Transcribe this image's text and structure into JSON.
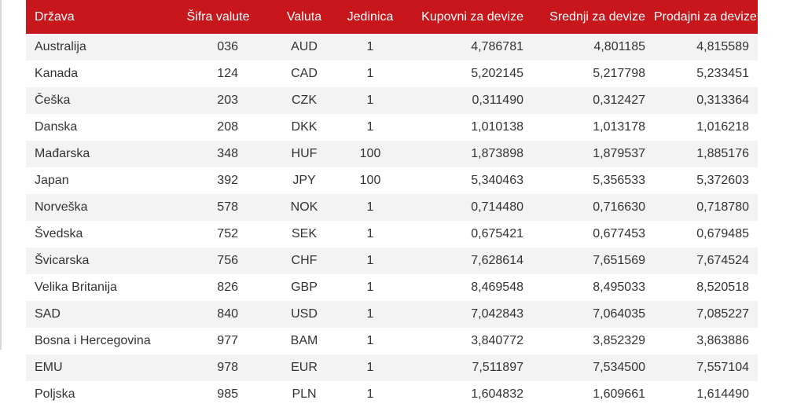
{
  "table": {
    "headers": {
      "country": "Država",
      "code": "Šifra valute",
      "currency": "Valuta",
      "unit": "Jedinica",
      "buy": "Kupovni za devize",
      "mid": "Srednji za devize",
      "sell": "Prodajni za devize"
    },
    "rows": [
      {
        "country": "Australija",
        "code": "036",
        "currency": "AUD",
        "unit": "1",
        "buy": "4,786781",
        "mid": "4,801185",
        "sell": "4,815589"
      },
      {
        "country": "Kanada",
        "code": "124",
        "currency": "CAD",
        "unit": "1",
        "buy": "5,202145",
        "mid": "5,217798",
        "sell": "5,233451"
      },
      {
        "country": "Češka",
        "code": "203",
        "currency": "CZK",
        "unit": "1",
        "buy": "0,311490",
        "mid": "0,312427",
        "sell": "0,313364"
      },
      {
        "country": "Danska",
        "code": "208",
        "currency": "DKK",
        "unit": "1",
        "buy": "1,010138",
        "mid": "1,013178",
        "sell": "1,016218"
      },
      {
        "country": "Mađarska",
        "code": "348",
        "currency": "HUF",
        "unit": "100",
        "buy": "1,873898",
        "mid": "1,879537",
        "sell": "1,885176"
      },
      {
        "country": "Japan",
        "code": "392",
        "currency": "JPY",
        "unit": "100",
        "buy": "5,340463",
        "mid": "5,356533",
        "sell": "5,372603"
      },
      {
        "country": "Norveška",
        "code": "578",
        "currency": "NOK",
        "unit": "1",
        "buy": "0,714480",
        "mid": "0,716630",
        "sell": "0,718780"
      },
      {
        "country": "Švedska",
        "code": "752",
        "currency": "SEK",
        "unit": "1",
        "buy": "0,675421",
        "mid": "0,677453",
        "sell": "0,679485"
      },
      {
        "country": "Švicarska",
        "code": "756",
        "currency": "CHF",
        "unit": "1",
        "buy": "7,628614",
        "mid": "7,651569",
        "sell": "7,674524"
      },
      {
        "country": "Velika Britanija",
        "code": "826",
        "currency": "GBP",
        "unit": "1",
        "buy": "8,469548",
        "mid": "8,495033",
        "sell": "8,520518"
      },
      {
        "country": "SAD",
        "code": "840",
        "currency": "USD",
        "unit": "1",
        "buy": "7,042843",
        "mid": "7,064035",
        "sell": "7,085227"
      },
      {
        "country": "Bosna i Hercegovina",
        "code": "977",
        "currency": "BAM",
        "unit": "1",
        "buy": "3,840772",
        "mid": "3,852329",
        "sell": "3,863886"
      },
      {
        "country": "EMU",
        "code": "978",
        "currency": "EUR",
        "unit": "1",
        "buy": "7,511897",
        "mid": "7,534500",
        "sell": "7,557104"
      },
      {
        "country": "Poljska",
        "code": "985",
        "currency": "PLN",
        "unit": "1",
        "buy": "1,604832",
        "mid": "1,609661",
        "sell": "1,614490"
      }
    ]
  }
}
